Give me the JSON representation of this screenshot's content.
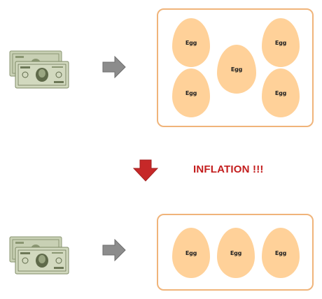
{
  "before": {
    "money_icon": "dollar-bills-icon",
    "arrow_icon": "right-arrow-icon",
    "eggs": [
      {
        "label": "Egg"
      },
      {
        "label": "Egg"
      },
      {
        "label": "Egg"
      },
      {
        "label": "Egg"
      },
      {
        "label": "Egg"
      }
    ]
  },
  "transition": {
    "arrow_icon": "down-arrow-icon",
    "label": "INFLATION !!!",
    "label_color": "#c31d1d"
  },
  "after": {
    "money_icon": "dollar-bills-icon",
    "arrow_icon": "right-arrow-icon",
    "eggs": [
      {
        "label": "Egg"
      },
      {
        "label": "Egg"
      },
      {
        "label": "Egg"
      }
    ]
  },
  "colors": {
    "egg_fill": "#ffd199",
    "box_border": "#f0b47a",
    "arrow_gray": "#8c8c8c",
    "arrow_red": "#c62828",
    "bill_green": "#a7b48f"
  }
}
